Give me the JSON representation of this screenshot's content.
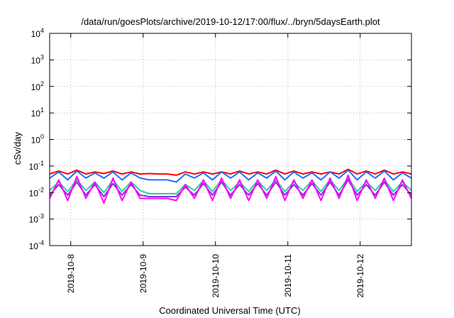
{
  "chart_data": {
    "type": "line",
    "title": "/data/run/goesPlots/archive/2019-10-12/17:00/flux/../bryn/5daysEarth.plot",
    "xlabel": "Coordinated Universal Time (UTC)",
    "ylabel": "cSv/day",
    "yscale": "log",
    "ylim": [
      0.0001,
      10000
    ],
    "xlim": [
      "2019-10-07 17:00",
      "2019-10-12 17:00"
    ],
    "grid": true,
    "legend": "none",
    "y_ticks": [
      {
        "base": "10",
        "exp": "-4",
        "value": 0.0001
      },
      {
        "base": "10",
        "exp": "-3",
        "value": 0.001
      },
      {
        "base": "10",
        "exp": "-2",
        "value": 0.01
      },
      {
        "base": "10",
        "exp": "-1",
        "value": 0.1
      },
      {
        "base": "10",
        "exp": "0",
        "value": 1
      },
      {
        "base": "10",
        "exp": "1",
        "value": 10
      },
      {
        "base": "10",
        "exp": "2",
        "value": 100
      },
      {
        "base": "10",
        "exp": "3",
        "value": 1000
      },
      {
        "base": "10",
        "exp": "4",
        "value": 10000
      }
    ],
    "x_ticks": [
      {
        "label": "2019-10-8",
        "value": "2019-10-08 00:00"
      },
      {
        "label": "2019-10-9",
        "value": "2019-10-09 00:00"
      },
      {
        "label": "2019-10-10",
        "value": "2019-10-10 00:00"
      },
      {
        "label": "2019-10-11",
        "value": "2019-10-11 00:00"
      },
      {
        "label": "2019-10-12",
        "value": "2019-10-12 00:00"
      }
    ],
    "x": [
      "2019-10-07 17:00",
      "2019-10-07 20:00",
      "2019-10-07 23:00",
      "2019-10-08 02:00",
      "2019-10-08 05:00",
      "2019-10-08 08:00",
      "2019-10-08 11:00",
      "2019-10-08 14:00",
      "2019-10-08 17:00",
      "2019-10-08 20:00",
      "2019-10-08 23:00",
      "2019-10-09 02:00",
      "2019-10-09 05:00",
      "2019-10-09 08:00",
      "2019-10-09 11:00",
      "2019-10-09 14:00",
      "2019-10-09 17:00",
      "2019-10-09 20:00",
      "2019-10-09 23:00",
      "2019-10-10 02:00",
      "2019-10-10 05:00",
      "2019-10-10 08:00",
      "2019-10-10 11:00",
      "2019-10-10 14:00",
      "2019-10-10 17:00",
      "2019-10-10 20:00",
      "2019-10-10 23:00",
      "2019-10-11 02:00",
      "2019-10-11 05:00",
      "2019-10-11 08:00",
      "2019-10-11 11:00",
      "2019-10-11 14:00",
      "2019-10-11 17:00",
      "2019-10-11 20:00",
      "2019-10-11 23:00",
      "2019-10-12 02:00",
      "2019-10-12 05:00",
      "2019-10-12 08:00",
      "2019-10-12 11:00",
      "2019-10-12 14:00",
      "2019-10-12 17:00"
    ],
    "series": [
      {
        "color": "#ff0000",
        "values": [
          0.05,
          0.065,
          0.05,
          0.07,
          0.05,
          0.06,
          0.052,
          0.065,
          0.05,
          0.06,
          0.05,
          0.052,
          0.05,
          0.05,
          0.045,
          0.06,
          0.05,
          0.06,
          0.05,
          0.06,
          0.05,
          0.065,
          0.05,
          0.06,
          0.05,
          0.07,
          0.05,
          0.065,
          0.05,
          0.06,
          0.05,
          0.06,
          0.05,
          0.075,
          0.05,
          0.065,
          0.05,
          0.07,
          0.05,
          0.06,
          0.05
        ]
      },
      {
        "color": "#1f6fff",
        "values": [
          0.035,
          0.06,
          0.03,
          0.065,
          0.035,
          0.055,
          0.035,
          0.06,
          0.03,
          0.055,
          0.035,
          0.03,
          0.03,
          0.03,
          0.025,
          0.05,
          0.035,
          0.055,
          0.03,
          0.06,
          0.035,
          0.06,
          0.03,
          0.055,
          0.035,
          0.065,
          0.03,
          0.06,
          0.035,
          0.055,
          0.03,
          0.06,
          0.035,
          0.07,
          0.03,
          0.06,
          0.035,
          0.065,
          0.03,
          0.055,
          0.035
        ]
      },
      {
        "color": "#2ad29c",
        "values": [
          0.012,
          0.025,
          0.011,
          0.03,
          0.012,
          0.025,
          0.01,
          0.03,
          0.011,
          0.025,
          0.012,
          0.009,
          0.009,
          0.009,
          0.009,
          0.02,
          0.012,
          0.028,
          0.011,
          0.03,
          0.012,
          0.025,
          0.011,
          0.028,
          0.012,
          0.03,
          0.011,
          0.025,
          0.012,
          0.028,
          0.011,
          0.03,
          0.012,
          0.035,
          0.011,
          0.025,
          0.012,
          0.03,
          0.011,
          0.025,
          0.012
        ]
      },
      {
        "color": "#8a2be2",
        "values": [
          0.008,
          0.02,
          0.008,
          0.025,
          0.008,
          0.02,
          0.007,
          0.022,
          0.008,
          0.02,
          0.008,
          0.007,
          0.007,
          0.007,
          0.007,
          0.016,
          0.008,
          0.022,
          0.008,
          0.025,
          0.008,
          0.02,
          0.008,
          0.022,
          0.008,
          0.025,
          0.008,
          0.02,
          0.008,
          0.022,
          0.008,
          0.025,
          0.008,
          0.03,
          0.008,
          0.02,
          0.008,
          0.025,
          0.008,
          0.02,
          0.008
        ]
      },
      {
        "color": "#ff00ff",
        "values": [
          0.006,
          0.03,
          0.005,
          0.04,
          0.006,
          0.025,
          0.004,
          0.035,
          0.005,
          0.025,
          0.006,
          0.006,
          0.006,
          0.006,
          0.005,
          0.02,
          0.006,
          0.03,
          0.005,
          0.035,
          0.006,
          0.03,
          0.005,
          0.03,
          0.006,
          0.04,
          0.005,
          0.03,
          0.006,
          0.03,
          0.005,
          0.035,
          0.006,
          0.045,
          0.005,
          0.03,
          0.006,
          0.035,
          0.005,
          0.03,
          0.006
        ]
      }
    ]
  }
}
